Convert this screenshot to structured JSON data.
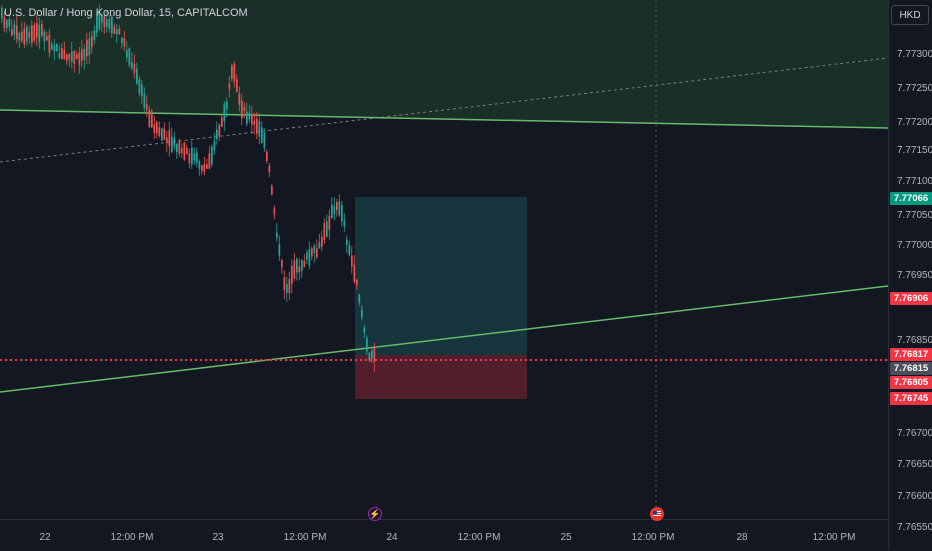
{
  "header": {
    "symbol_title": "U.S. Dollar / Hong Kong Dollar, 15, CAPITALCOM"
  },
  "currency_button": "HKD",
  "price_axis": {
    "ticks": [
      "7.77300",
      "7.77250",
      "7.77200",
      "7.77150",
      "7.77100",
      "7.77050",
      "7.77000",
      "7.76950",
      "7.76850",
      "7.76700",
      "7.76650",
      "7.76600",
      "7.76550"
    ],
    "tags": [
      {
        "label": "7.77066",
        "color": "#089981"
      },
      {
        "label": "7.76906",
        "color": "#f23645"
      },
      {
        "label": "7.76817",
        "color": "#f23645"
      },
      {
        "label": "7.76815",
        "color": "#4b4f5c"
      },
      {
        "label": "7.76805",
        "color": "#f23645"
      },
      {
        "label": "7.76745",
        "color": "#f23645"
      }
    ]
  },
  "time_axis": {
    "labels": [
      "22",
      "12:00 PM",
      "23",
      "12:00 PM",
      "24",
      "12:00 PM",
      "25",
      "12:00 PM",
      "28",
      "12:00 PM"
    ]
  },
  "event_icons": {
    "bolt": "lightning-icon",
    "flag": "us-flag-icon"
  },
  "colors": {
    "background": "#131722",
    "bull": "#26a69a",
    "bear": "#ef5350",
    "trendline": "#4caf50",
    "zone_green": "rgba(76,175,80,0.16)",
    "target_zone": "rgba(38,166,154,0.22)",
    "stop_zone": "rgba(242,54,69,0.28)"
  }
}
